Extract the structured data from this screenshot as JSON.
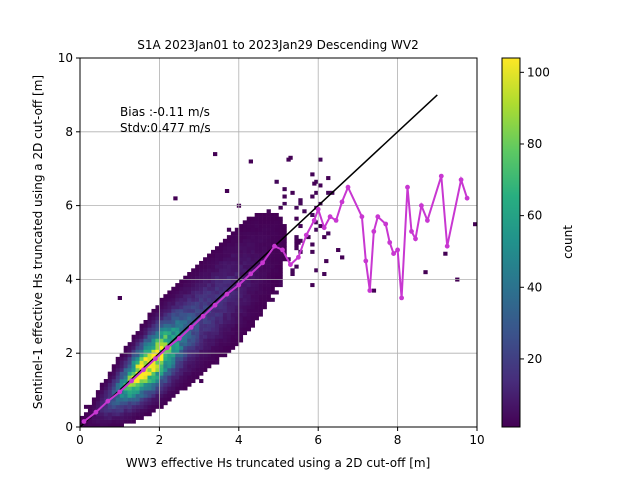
{
  "chart_data": {
    "type": "heatmap",
    "title": "S1A 2023Jan01 to 2023Jan29 Descending WV2",
    "xlabel": "WW3 effective Hs truncated using a 2D cut-off [m]",
    "ylabel": "Sentinel-1 effective Hs truncated using a 2D cut-off [m]",
    "xlim": [
      0,
      10
    ],
    "ylim": [
      0,
      10
    ],
    "xticks": [
      "0",
      "2",
      "4",
      "6",
      "8",
      "10"
    ],
    "yticks": [
      "0",
      "2",
      "4",
      "6",
      "8",
      "10"
    ],
    "grid": true,
    "annotations": [
      "Bias :-0.11 m/s",
      "Stdv:0.477 m/s"
    ],
    "colorbar": {
      "label": "count",
      "range": [
        1,
        104
      ],
      "ticks": [
        "20",
        "40",
        "60",
        "80",
        "100"
      ],
      "colormap": "viridis"
    },
    "identity_line": {
      "x": [
        0,
        9
      ],
      "y": [
        0,
        9
      ],
      "color": "#000000"
    },
    "bias_curve": {
      "color": "#c837d1",
      "x": [
        0.1,
        0.4,
        0.7,
        1.0,
        1.3,
        1.6,
        1.9,
        2.2,
        2.5,
        2.8,
        3.1,
        3.4,
        3.7,
        4.0,
        4.3,
        4.6,
        4.9,
        5.1,
        5.3,
        5.5,
        5.7,
        5.9,
        6.0,
        6.15,
        6.3,
        6.45,
        6.6,
        6.75,
        7.1,
        7.2,
        7.3,
        7.4,
        7.5,
        7.7,
        7.8,
        7.9,
        8.0,
        8.1,
        8.25,
        8.35,
        8.45,
        8.6,
        8.75,
        9.1,
        9.25,
        9.6,
        9.75
      ],
      "y": [
        0.15,
        0.4,
        0.7,
        0.95,
        1.25,
        1.55,
        1.85,
        2.15,
        2.4,
        2.7,
        3.0,
        3.3,
        3.6,
        3.85,
        4.15,
        4.45,
        4.9,
        4.8,
        4.4,
        4.6,
        5.2,
        5.6,
        5.9,
        5.4,
        5.7,
        5.6,
        6.1,
        6.5,
        5.7,
        4.5,
        3.7,
        5.3,
        5.7,
        5.5,
        5.0,
        4.7,
        4.8,
        3.5,
        6.5,
        5.3,
        5.1,
        6.0,
        5.6,
        6.8,
        4.9,
        6.7,
        6.2
      ]
    },
    "outliers": [
      [
        4.3,
        7.2
      ],
      [
        5.3,
        7.3
      ],
      [
        5.5,
        5.0
      ],
      [
        6.2,
        4.5
      ],
      [
        6.5,
        4.8
      ],
      [
        7.4,
        3.7
      ],
      [
        8.7,
        4.2
      ],
      [
        9.2,
        4.7
      ],
      [
        9.5,
        4.0
      ],
      [
        9.95,
        5.5
      ],
      [
        3.4,
        7.4
      ],
      [
        2.4,
        6.2
      ],
      [
        1.0,
        3.5
      ],
      [
        3.7,
        6.4
      ],
      [
        5.9,
        6.6
      ],
      [
        6.6,
        4.6
      ],
      [
        4.0,
        6.0
      ]
    ]
  }
}
